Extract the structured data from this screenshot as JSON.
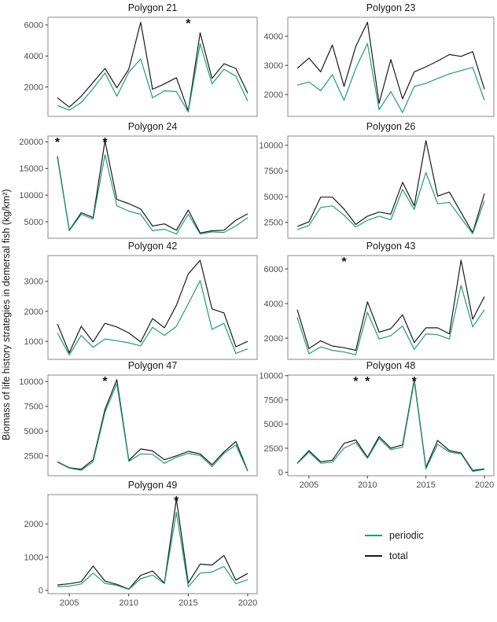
{
  "figure": {
    "ylabel": "Biomass of life history strategies in demersal fish (kg/km²)",
    "legend": {
      "items": [
        {
          "label": "periodic",
          "color": "#1b9e77"
        },
        {
          "label": "total",
          "color": "#1a1a1a"
        }
      ]
    }
  },
  "chart_data": {
    "type": "line",
    "x": [
      2004,
      2005,
      2006,
      2007,
      2008,
      2009,
      2010,
      2011,
      2012,
      2013,
      2014,
      2015,
      2016,
      2017,
      2018,
      2019,
      2020
    ],
    "xticks": [
      2005,
      2010,
      2015,
      2020
    ],
    "series_meta": [
      {
        "name": "periodic",
        "color": "#1b9e77"
      },
      {
        "name": "total",
        "color": "#1a1a1a"
      }
    ],
    "facets": [
      {
        "title": "Polygon 21",
        "yticks": [
          2000,
          4000,
          6000
        ],
        "ylim": [
          100,
          6500
        ],
        "stars": [
          2015
        ],
        "xlabels": false,
        "total": [
          1300,
          700,
          1400,
          2300,
          3200,
          1950,
          3150,
          6180,
          1850,
          2200,
          2600,
          450,
          5500,
          2550,
          3500,
          3200,
          1600
        ],
        "periodic": [
          800,
          500,
          1000,
          1900,
          2900,
          1400,
          2950,
          3810,
          1300,
          1750,
          1700,
          380,
          4800,
          2200,
          3150,
          2700,
          1100
        ]
      },
      {
        "title": "Polygon 23",
        "yticks": [
          2000,
          3000,
          4000
        ],
        "ylim": [
          1250,
          4650
        ],
        "stars": [],
        "xlabels": false,
        "total": [
          2900,
          3250,
          2780,
          3700,
          2280,
          3650,
          4480,
          1700,
          3200,
          1850,
          2780,
          2950,
          3150,
          3370,
          3310,
          3470,
          2180
        ],
        "periodic": [
          2320,
          2430,
          2130,
          2680,
          1800,
          2900,
          3750,
          1480,
          2100,
          1380,
          2280,
          2380,
          2550,
          2710,
          2820,
          2930,
          1800
        ]
      },
      {
        "title": "Polygon 24",
        "yticks": [
          5000,
          10000,
          15000,
          20000
        ],
        "ylim": [
          1900,
          21100
        ],
        "stars": [
          2004,
          2008
        ],
        "xlabels": false,
        "total": [
          17300,
          3400,
          6700,
          5800,
          20200,
          9200,
          8400,
          7400,
          4200,
          4600,
          3400,
          7200,
          2900,
          3300,
          3400,
          5300,
          6500
        ],
        "periodic": [
          17000,
          3300,
          6400,
          5500,
          17600,
          8000,
          7000,
          6400,
          3300,
          3600,
          2700,
          6400,
          2700,
          3100,
          3000,
          4200,
          5800
        ]
      },
      {
        "title": "Polygon 26",
        "yticks": [
          2500,
          5000,
          7500,
          10000
        ],
        "ylim": [
          950,
          10900
        ],
        "stars": [],
        "xlabels": false,
        "total": [
          2100,
          2550,
          4950,
          4950,
          3800,
          2300,
          3100,
          3500,
          3300,
          6400,
          4100,
          10450,
          5050,
          5450,
          3450,
          1500,
          5300
        ],
        "periodic": [
          1800,
          2200,
          3950,
          4100,
          3200,
          2050,
          2700,
          3100,
          2750,
          5700,
          3750,
          7350,
          4300,
          4450,
          2900,
          1400,
          4600
        ]
      },
      {
        "title": "Polygon 42",
        "yticks": [
          1000,
          2000,
          3000
        ],
        "ylim": [
          400,
          3860
        ],
        "stars": [],
        "xlabels": false,
        "total": [
          1580,
          620,
          1500,
          980,
          1600,
          1480,
          1280,
          980,
          1760,
          1450,
          2200,
          3250,
          3700,
          2080,
          1950,
          820,
          1000
        ],
        "periodic": [
          1280,
          550,
          1200,
          800,
          1080,
          1020,
          950,
          850,
          1470,
          1200,
          1500,
          2250,
          3030,
          1400,
          1600,
          600,
          750
        ]
      },
      {
        "title": "Polygon 43",
        "yticks": [
          2000,
          4000,
          6000
        ],
        "ylim": [
          780,
          6770
        ],
        "stars": [
          2008
        ],
        "xlabels": false,
        "total": [
          3650,
          1400,
          1850,
          1550,
          1450,
          1300,
          4100,
          2350,
          2550,
          3350,
          1750,
          2600,
          2600,
          2250,
          6500,
          3100,
          4400
        ],
        "periodic": [
          3200,
          1100,
          1500,
          1300,
          1200,
          1050,
          3500,
          1950,
          2150,
          2700,
          1350,
          2250,
          2200,
          1950,
          5050,
          2650,
          3650
        ]
      },
      {
        "title": "Polygon 47",
        "yticks": [
          2500,
          5000,
          7500,
          10000
        ],
        "ylim": [
          490,
          10660
        ],
        "stars": [
          2008
        ],
        "xlabels": false,
        "total": [
          1900,
          1300,
          1150,
          2100,
          7200,
          10200,
          2050,
          3200,
          3000,
          2100,
          2500,
          2950,
          2700,
          1600,
          2900,
          3950,
          1000
        ],
        "periodic": [
          1850,
          1250,
          1050,
          1900,
          6900,
          9800,
          1950,
          2700,
          2650,
          1750,
          2350,
          2750,
          2550,
          1400,
          2750,
          3600,
          950
        ]
      },
      {
        "title": "Polygon 48",
        "yticks": [
          0,
          2500,
          5000,
          7500,
          10000
        ],
        "ylim": [
          -350,
          10060
        ],
        "stars": [
          2009,
          2010,
          2014
        ],
        "xlabels": true,
        "total": [
          950,
          2250,
          1100,
          1250,
          3000,
          3350,
          1550,
          3700,
          2500,
          2850,
          9600,
          500,
          3300,
          2250,
          2000,
          200,
          350
        ],
        "periodic": [
          900,
          2100,
          950,
          1050,
          2500,
          3100,
          1450,
          3500,
          2350,
          2600,
          9400,
          350,
          2900,
          2100,
          1900,
          100,
          300
        ]
      },
      {
        "title": "Polygon 49",
        "yticks": [
          0,
          1000,
          2000
        ],
        "ylim": [
          -100,
          2880
        ],
        "stars": [
          2014
        ],
        "xlabels": true,
        "total": [
          160,
          200,
          260,
          730,
          280,
          180,
          40,
          450,
          580,
          220,
          2750,
          220,
          790,
          760,
          1050,
          310,
          510
        ],
        "periodic": [
          110,
          130,
          190,
          520,
          210,
          150,
          30,
          350,
          460,
          200,
          2350,
          110,
          520,
          550,
          720,
          200,
          320
        ]
      }
    ]
  }
}
